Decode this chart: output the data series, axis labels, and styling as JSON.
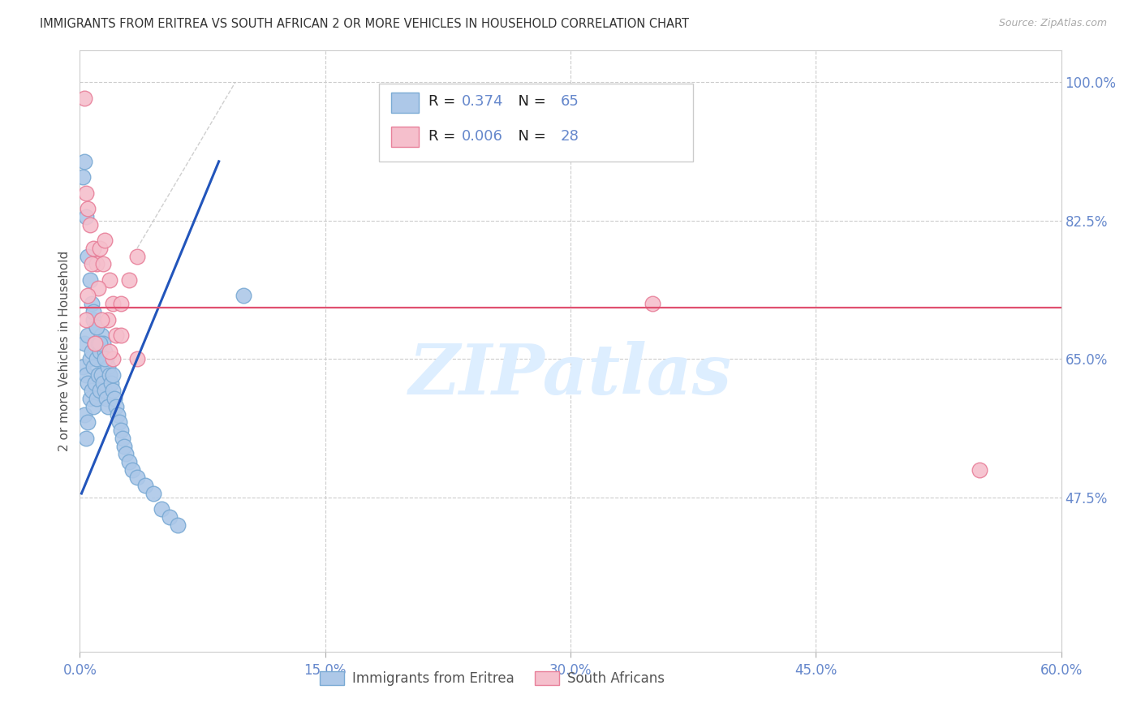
{
  "title": "IMMIGRANTS FROM ERITREA VS SOUTH AFRICAN 2 OR MORE VEHICLES IN HOUSEHOLD CORRELATION CHART",
  "source": "Source: ZipAtlas.com",
  "ylabel": "2 or more Vehicles in Household",
  "legend_blue_r_val": "0.374",
  "legend_blue_n_val": "65",
  "legend_pink_r_val": "0.006",
  "legend_pink_n_val": "28",
  "legend_label_blue": "Immigrants from Eritrea",
  "legend_label_pink": "South Africans",
  "watermark": "ZIPatlas",
  "xlim": [
    0.0,
    60.0
  ],
  "ylim": [
    28.0,
    104.0
  ],
  "xticks": [
    0.0,
    15.0,
    30.0,
    45.0,
    60.0
  ],
  "yticks": [
    47.5,
    65.0,
    82.5,
    100.0
  ],
  "ytick_labels": [
    "47.5%",
    "65.0%",
    "82.5%",
    "100.0%"
  ],
  "xtick_labels": [
    "0.0%",
    "15.0%",
    "30.0%",
    "45.0%",
    "60.0%"
  ],
  "blue_color": "#adc8e8",
  "blue_edge_color": "#7aaad4",
  "pink_color": "#f5bfcc",
  "pink_edge_color": "#e8809a",
  "trend_blue_color": "#2255bb",
  "trend_pink_color": "#e05070",
  "grid_color": "#cccccc",
  "title_color": "#333333",
  "tick_color": "#6688cc",
  "source_color": "#aaaaaa",
  "watermark_color": "#ddeeff",
  "blue_x": [
    0.2,
    0.3,
    0.3,
    0.4,
    0.4,
    0.5,
    0.5,
    0.5,
    0.6,
    0.6,
    0.7,
    0.7,
    0.8,
    0.8,
    0.8,
    0.9,
    0.9,
    1.0,
    1.0,
    1.0,
    1.1,
    1.1,
    1.2,
    1.2,
    1.3,
    1.3,
    1.4,
    1.4,
    1.5,
    1.5,
    1.6,
    1.6,
    1.7,
    1.7,
    1.8,
    1.9,
    2.0,
    2.1,
    2.2,
    2.3,
    2.4,
    2.5,
    2.6,
    2.7,
    2.8,
    3.0,
    3.2,
    3.5,
    4.0,
    4.5,
    5.0,
    5.5,
    6.0,
    0.2,
    0.3,
    0.4,
    0.5,
    0.6,
    0.7,
    0.8,
    1.0,
    1.2,
    1.5,
    2.0,
    10.0
  ],
  "blue_y": [
    64.0,
    67.0,
    58.0,
    63.0,
    55.0,
    68.0,
    62.0,
    57.0,
    65.0,
    60.0,
    66.0,
    61.0,
    70.0,
    64.0,
    59.0,
    67.0,
    62.0,
    69.0,
    65.0,
    60.0,
    67.0,
    63.0,
    66.0,
    61.0,
    68.0,
    63.0,
    67.0,
    62.0,
    66.0,
    61.0,
    65.0,
    60.0,
    64.0,
    59.0,
    63.0,
    62.0,
    61.0,
    60.0,
    59.0,
    58.0,
    57.0,
    56.0,
    55.0,
    54.0,
    53.0,
    52.0,
    51.0,
    50.0,
    49.0,
    48.0,
    46.0,
    45.0,
    44.0,
    88.0,
    90.0,
    83.0,
    78.0,
    75.0,
    72.0,
    71.0,
    69.0,
    67.0,
    65.0,
    63.0,
    73.0
  ],
  "pink_x": [
    0.3,
    0.4,
    0.5,
    0.6,
    0.8,
    1.0,
    1.2,
    1.5,
    1.8,
    2.0,
    2.2,
    2.5,
    3.0,
    3.5,
    0.4,
    0.7,
    1.1,
    1.4,
    1.7,
    2.0,
    2.5,
    3.5,
    0.5,
    0.9,
    1.3,
    1.8,
    35.0,
    55.0
  ],
  "pink_y": [
    98.0,
    86.0,
    84.0,
    82.0,
    79.0,
    77.0,
    79.0,
    80.0,
    75.0,
    72.0,
    68.0,
    72.0,
    75.0,
    78.0,
    70.0,
    77.0,
    74.0,
    77.0,
    70.0,
    65.0,
    68.0,
    65.0,
    73.0,
    67.0,
    70.0,
    66.0,
    72.0,
    51.0
  ],
  "pink_trend_y": 71.5,
  "blue_trend_x1": 0.1,
  "blue_trend_y1": 48.0,
  "blue_trend_x2": 8.5,
  "blue_trend_y2": 90.0,
  "diagonal_dashed_x1": 3.5,
  "diagonal_dashed_y1": 79.0,
  "diagonal_dashed_x2": 9.5,
  "diagonal_dashed_y2": 100.0
}
